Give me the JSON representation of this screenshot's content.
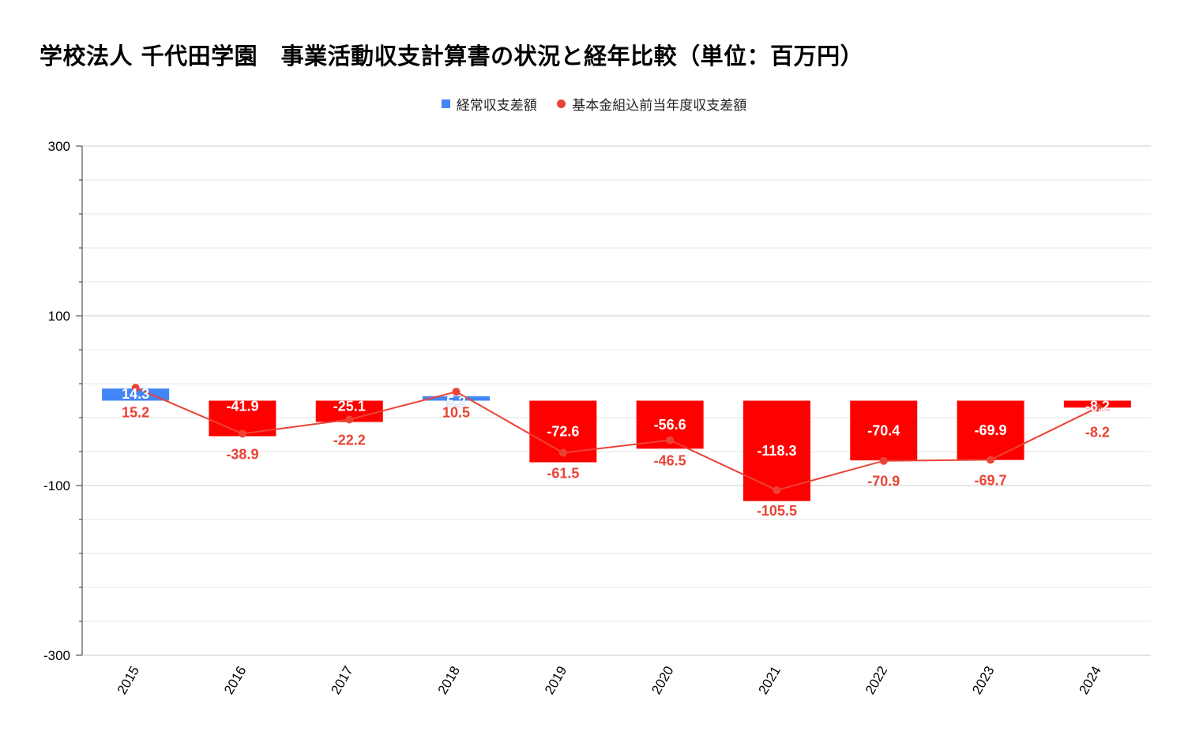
{
  "chart_data": {
    "type": "bar",
    "title": "学校法人 千代田学園　事業活動収支計算書の状況と経年比較（単位：百万円）",
    "categories": [
      "2015",
      "2016",
      "2017",
      "2018",
      "2019",
      "2020",
      "2021",
      "2022",
      "2023",
      "2024"
    ],
    "series": [
      {
        "name": "経常収支差額",
        "kind": "bar",
        "values": [
          14.3,
          -41.9,
          -25.1,
          5.2,
          -72.6,
          -56.6,
          -118.3,
          -70.4,
          -69.9,
          -8.2
        ]
      },
      {
        "name": "基本金組込前当年度収支差額",
        "kind": "line",
        "values": [
          15.2,
          -38.9,
          -22.2,
          10.5,
          -61.5,
          -46.5,
          -105.5,
          -70.9,
          -69.7,
          -8.2
        ]
      }
    ],
    "ylim": [
      -300,
      300
    ],
    "yticks": [
      300,
      100,
      -100,
      -300
    ],
    "xlabel": "",
    "ylabel": "",
    "grid": true,
    "legend_position": "top",
    "colors": {
      "positive_bar": "#4285f4",
      "negative_bar": "#ff0000",
      "line": "#ea4335",
      "line_label": "#ea4335",
      "bar_label": "#ffffff",
      "grid": "#dddddd",
      "axis": "#333333"
    }
  }
}
